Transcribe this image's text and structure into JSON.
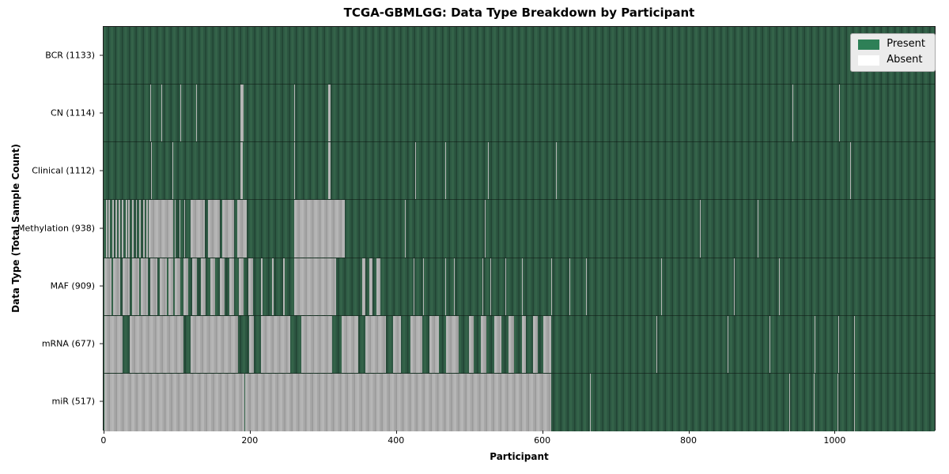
{
  "chart_data": {
    "type": "heatmap",
    "title": "TCGA-GBMLGG: Data Type Breakdown by Participant",
    "xlabel": "Participant",
    "ylabel": "Data Type (Total Sample Count)",
    "x_ticks": [
      0,
      200,
      400,
      600,
      800,
      1000
    ],
    "x_domain": [
      -1,
      1138
    ],
    "n_participants": 1133,
    "grid": false,
    "legend_position": "upper right",
    "legend": [
      {
        "label": "Present",
        "color": "#2e8057"
      },
      {
        "label": "Absent",
        "color": "#ffffff"
      }
    ],
    "rows": [
      {
        "name": "bcr",
        "label": "BCR (1133)",
        "data_type": "BCR",
        "count": 1133,
        "absent": []
      },
      {
        "name": "cn",
        "label": "CN (1114)",
        "data_type": "CN",
        "count": 1114,
        "absent": [
          [
            63,
            64
          ],
          [
            78,
            79
          ],
          [
            104,
            105
          ],
          [
            126,
            127
          ],
          [
            186,
            191
          ],
          [
            260,
            261
          ],
          [
            307,
            310
          ],
          [
            523,
            524
          ],
          [
            943,
            944
          ],
          [
            1007,
            1008
          ]
        ]
      },
      {
        "name": "clinical",
        "label": "Clinical (1112)",
        "data_type": "Clinical",
        "count": 1112,
        "absent": [
          [
            64,
            65
          ],
          [
            93,
            94
          ],
          [
            186,
            190
          ],
          [
            260,
            261
          ],
          [
            307,
            310
          ],
          [
            426,
            427
          ],
          [
            467,
            468
          ],
          [
            526,
            527
          ],
          [
            619,
            620
          ],
          [
            1022,
            1023
          ]
        ]
      },
      {
        "name": "methylation",
        "label": "Methylation (938)",
        "data_type": "Methylation",
        "count": 938,
        "absent": [
          [
            2,
            4
          ],
          [
            6,
            8
          ],
          [
            11,
            13
          ],
          [
            15,
            17
          ],
          [
            20,
            22
          ],
          [
            24,
            26
          ],
          [
            29,
            31
          ],
          [
            33,
            35
          ],
          [
            38,
            40
          ],
          [
            43,
            45
          ],
          [
            48,
            50
          ],
          [
            53,
            55
          ],
          [
            58,
            60
          ],
          [
            61,
            94
          ],
          [
            97,
            98
          ],
          [
            103,
            104
          ],
          [
            110,
            111
          ],
          [
            118,
            138
          ],
          [
            142,
            158
          ],
          [
            162,
            178
          ],
          [
            182,
            195
          ],
          [
            260,
            330
          ],
          [
            412,
            413
          ],
          [
            521,
            522
          ],
          [
            816,
            817
          ],
          [
            895,
            896
          ]
        ]
      },
      {
        "name": "maf",
        "label": "MAF (909)",
        "data_type": "MAF",
        "count": 909,
        "absent": [
          [
            0,
            10
          ],
          [
            12,
            22
          ],
          [
            25,
            35
          ],
          [
            38,
            48
          ],
          [
            50,
            60
          ],
          [
            63,
            73
          ],
          [
            76,
            86
          ],
          [
            88,
            94
          ],
          [
            97,
            104
          ],
          [
            108,
            115
          ],
          [
            120,
            127
          ],
          [
            132,
            139
          ],
          [
            145,
            152
          ],
          [
            158,
            165
          ],
          [
            171,
            178
          ],
          [
            184,
            191
          ],
          [
            197,
            204
          ],
          [
            215,
            217
          ],
          [
            230,
            232
          ],
          [
            245,
            247
          ],
          [
            260,
            318
          ],
          [
            353,
            358
          ],
          [
            363,
            368
          ],
          [
            373,
            378
          ],
          [
            424,
            425
          ],
          [
            437,
            438
          ],
          [
            467,
            468
          ],
          [
            479,
            480
          ],
          [
            518,
            519
          ],
          [
            529,
            530
          ],
          [
            550,
            551
          ],
          [
            572,
            573
          ],
          [
            612,
            613
          ],
          [
            637,
            638
          ],
          [
            660,
            661
          ],
          [
            763,
            764
          ],
          [
            833,
            834
          ],
          [
            863,
            864
          ],
          [
            925,
            926
          ]
        ]
      },
      {
        "name": "mrna",
        "label": "mRNA (677)",
        "data_type": "mRNA",
        "count": 677,
        "absent": [
          [
            0,
            25
          ],
          [
            35,
            108
          ],
          [
            118,
            183
          ],
          [
            198,
            205
          ],
          [
            215,
            255
          ],
          [
            270,
            312
          ],
          [
            325,
            348
          ],
          [
            358,
            386
          ],
          [
            396,
            406
          ],
          [
            420,
            436
          ],
          [
            446,
            458
          ],
          [
            468,
            486
          ],
          [
            500,
            506
          ],
          [
            516,
            524
          ],
          [
            534,
            544
          ],
          [
            554,
            562
          ],
          [
            572,
            578
          ],
          [
            588,
            594
          ],
          [
            602,
            612
          ],
          [
            757,
            758
          ],
          [
            854,
            855
          ],
          [
            912,
            913
          ],
          [
            973,
            974
          ],
          [
            1006,
            1007
          ],
          [
            1028,
            1029
          ]
        ]
      },
      {
        "name": "mir",
        "label": "miR (517)",
        "data_type": "miR",
        "count": 517,
        "absent": [
          [
            0,
            192
          ],
          [
            193,
            612
          ],
          [
            666,
            667
          ],
          [
            717,
            718
          ],
          [
            939,
            940
          ],
          [
            972,
            973
          ],
          [
            1005,
            1006
          ],
          [
            1028,
            1029
          ]
        ]
      }
    ]
  }
}
